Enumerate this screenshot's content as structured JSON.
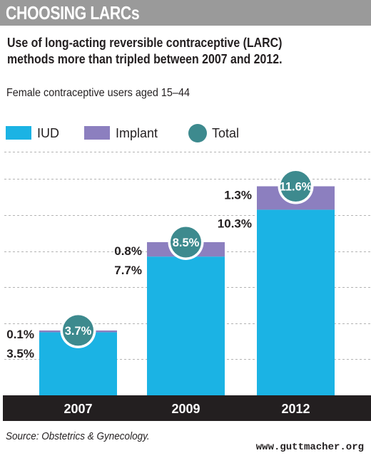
{
  "header": {
    "title": "CHOOSING LARCs"
  },
  "subtitle_lines": [
    "Use of long-acting reversible contraceptive (LARC)",
    "methods more than tripled between 2007 and 2012."
  ],
  "population_label": "Female contraceptive users aged 15–44",
  "source": "Source: Obstetrics & Gynecology.",
  "website": "www.guttmacher.org",
  "colors": {
    "iud": "#1bb3e4",
    "implant": "#8c7fbf",
    "total": "#3d8a8e",
    "axis_bar": "#231f20",
    "grid": "#b3b3b3",
    "header": "#9a9a9a"
  },
  "chart_data": {
    "type": "bar",
    "stacked": true,
    "categories": [
      "2007",
      "2009",
      "2012"
    ],
    "series": [
      {
        "name": "IUD",
        "values": [
          3.5,
          7.7,
          10.3
        ],
        "labels": [
          "3.5%",
          "7.7%",
          "10.3%"
        ]
      },
      {
        "name": "Implant",
        "values": [
          0.1,
          0.8,
          1.3
        ],
        "labels": [
          "0.1%",
          "0.8%",
          "1.3%"
        ]
      }
    ],
    "totals": {
      "name": "Total",
      "values": [
        3.7,
        8.5,
        11.6
      ],
      "labels": [
        "3.7%",
        "8.5%",
        "11.6%"
      ]
    },
    "legend": [
      "IUD",
      "Implant",
      "Total"
    ],
    "legend_position": "top-left",
    "ylim": [
      0,
      13
    ],
    "grid": true
  }
}
